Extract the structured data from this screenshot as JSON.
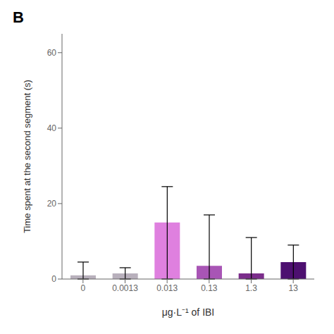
{
  "chart_data": {
    "type": "bar",
    "title": "B",
    "categories": [
      "0",
      "0.0013",
      "0.013",
      "0.13",
      "1.3",
      "13"
    ],
    "values": [
      1.0,
      1.5,
      15.0,
      3.5,
      1.5,
      4.5
    ],
    "errors_low": [
      1.0,
      1.5,
      15.0,
      3.5,
      1.5,
      4.5
    ],
    "errors_high": [
      3.5,
      1.5,
      9.5,
      13.5,
      9.5,
      4.5
    ],
    "colors": [
      "#b8b0bc",
      "#b8b0bc",
      "#df80df",
      "#a855b5",
      "#7b2d8b",
      "#4d1070"
    ],
    "xlabel": "μg·L⁻¹ of IBI",
    "ylabel": "Time spent at the second segment (s)",
    "ylim": [
      0,
      65
    ],
    "yticks": [
      0,
      20,
      40,
      60
    ],
    "grid": false
  }
}
